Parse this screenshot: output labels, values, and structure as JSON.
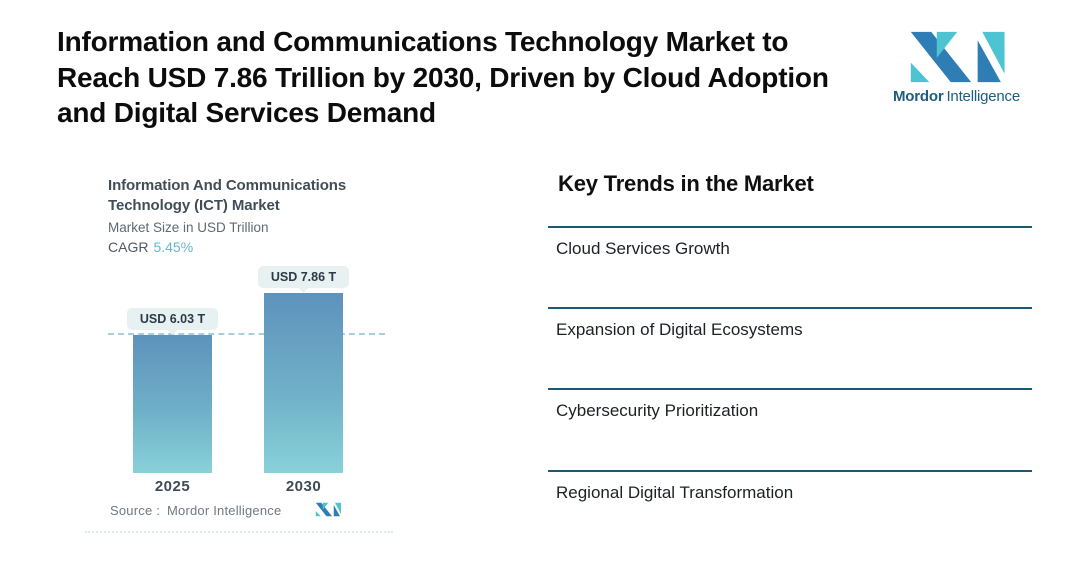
{
  "page": {
    "title_lines": [
      "Information and Communications Technology Market to",
      "Reach USD 7.86 Trillion by 2030, Driven by Cloud Adoption",
      "and Digital Services Demand"
    ]
  },
  "brand": {
    "name_bold": "Mordor",
    "name_regular": "Intelligence"
  },
  "chart_card": {
    "title_line1": "Information And Communications",
    "title_line2": "Technology (ICT) Market",
    "subtitle": "Market Size in USD Trillion",
    "cagr_label": "CAGR",
    "cagr_value": "5.45%",
    "source_label": "Source :",
    "source_value": "Mordor Intelligence"
  },
  "chart_data": {
    "type": "bar",
    "title": "Information And Communications Technology (ICT) Market",
    "subtitle": "Market Size in USD Trillion",
    "cagr_pct": 5.45,
    "categories": [
      "2025",
      "2030"
    ],
    "values": [
      6.03,
      7.86
    ],
    "unit": "USD Trillion",
    "bar_labels": [
      "USD 6.03 T",
      "USD 7.86 T"
    ],
    "reference_line_value": 6.03,
    "ylim": [
      0,
      7.86
    ],
    "grid": false,
    "legend": false
  },
  "key_trends": {
    "heading": "Key Trends in the Market",
    "items": [
      "Cloud Services Growth",
      "Expansion of Digital Ecosystems",
      "Cybersecurity Prioritization",
      "Regional Digital Transformation"
    ]
  },
  "colors": {
    "divider": "#1a5a74",
    "cagr_value": "#62b7d3",
    "bar_top": "#5e92bc",
    "bar_bottom": "#88d1d9",
    "dashed_line": "#a6cede",
    "pill_bg": "#e7f1f1",
    "pill_text": "#2a3b47",
    "logo_dark": "#2f7db5",
    "logo_teal": "#4ec3d2",
    "brand_text": "#1d5e7e"
  }
}
